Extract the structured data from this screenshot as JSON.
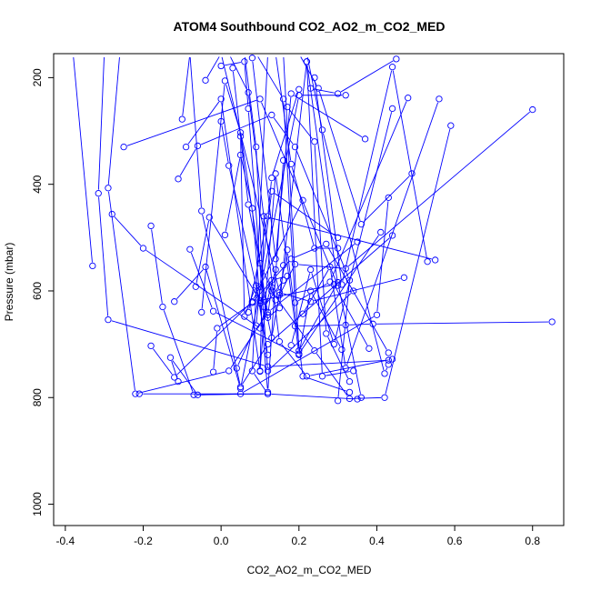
{
  "chart_data": {
    "type": "line",
    "title": "ATOM4 Southbound CO2_AO2_m_CO2_MED",
    "xlabel": "CO2_AO2_m_CO2_MED",
    "ylabel": "Pressure (mbar)",
    "xlim": [
      -0.43,
      0.88
    ],
    "ylim": [
      1040,
      155
    ],
    "y_reversed": true,
    "x_ticks": [
      -0.4,
      -0.2,
      0.0,
      0.2,
      0.4,
      0.6,
      0.8
    ],
    "x_tick_labels": [
      "-0.4",
      "-0.2",
      "0.0",
      "0.2",
      "0.4",
      "0.6",
      "0.8"
    ],
    "y_ticks": [
      200,
      400,
      600,
      800,
      1000
    ],
    "y_tick_labels": [
      "200",
      "400",
      "600",
      "800",
      "1000"
    ],
    "series_color": "#0000ff",
    "grid": false,
    "legend": "none",
    "series": [
      {
        "x": [
          -0.38,
          -0.33
        ],
        "y": [
          155,
          553
        ]
      },
      {
        "x": [
          -0.3,
          -0.315,
          -0.29,
          0.12,
          0.43
        ],
        "y": [
          155,
          417,
          654,
          742,
          730
        ]
      },
      {
        "x": [
          -0.26,
          -0.29,
          -0.22,
          0.02,
          0.12,
          0.35
        ],
        "y": [
          155,
          407,
          793,
          750,
          640,
          508
        ]
      },
      {
        "x": [
          -0.25,
          0.1,
          0.3,
          0.22
        ],
        "y": [
          330,
          240,
          590,
          170
        ]
      },
      {
        "x": [
          -0.28,
          -0.2,
          0.1,
          0.14
        ],
        "y": [
          456,
          520,
          670,
          560
        ]
      },
      {
        "x": [
          -0.18,
          -0.12,
          0.08,
          0.21
        ],
        "y": [
          703,
          762,
          620,
          430
        ]
      },
      {
        "x": [
          -0.21,
          0.12,
          0.35
        ],
        "y": [
          793,
          793,
          803
        ]
      },
      {
        "x": [
          -0.18,
          -0.15,
          -0.07,
          0.12,
          0.08,
          0.12
        ],
        "y": [
          478,
          630,
          795,
          793,
          750,
          155
        ]
      },
      {
        "x": [
          -0.11,
          -0.13,
          -0.06,
          0.05,
          0.4,
          0.43
        ],
        "y": [
          770,
          725,
          795,
          793,
          645,
          425
        ]
      },
      {
        "x": [
          -0.12,
          -0.04,
          0.05,
          0.2,
          0.32
        ],
        "y": [
          620,
          555,
          783,
          233,
          233
        ]
      },
      {
        "x": [
          -0.11,
          -0.06,
          0.13,
          0.19,
          0.33,
          0.3
        ],
        "y": [
          390,
          328,
          270,
          330,
          580,
          806
        ]
      },
      {
        "x": [
          -0.1,
          -0.08,
          -0.05,
          0.05,
          0.12,
          0.44
        ],
        "y": [
          278,
          155,
          450,
          780,
          700,
          496
        ]
      },
      {
        "x": [
          -0.09,
          0.0,
          0.1,
          0.11,
          0.55
        ],
        "y": [
          330,
          240,
          751,
          460,
          542
        ]
      },
      {
        "x": [
          -0.08,
          -0.02,
          0.2,
          0.23,
          0.31
        ],
        "y": [
          522,
          638,
          720,
          600,
          710
        ]
      },
      {
        "x": [
          -0.065,
          -0.03,
          0.1,
          0.29,
          0.38
        ],
        "y": [
          592,
          462,
          618,
          588,
          708
        ]
      },
      {
        "x": [
          -0.05,
          0.01,
          0.05,
          0.12,
          0.13
        ],
        "y": [
          640,
          206,
          303,
          645,
          593
        ]
      },
      {
        "x": [
          -0.04,
          0.0,
          0.15,
          0.23,
          0.47
        ],
        "y": [
          205,
          155,
          603,
          620,
          575
        ]
      },
      {
        "x": [
          -0.02,
          -0.01,
          0.08,
          0.18,
          0.27,
          0.43
        ],
        "y": [
          752,
          670,
          622,
          540,
          512,
          716
        ]
      },
      {
        "x": [
          0.0,
          0.06,
          0.07,
          0.12,
          0.34
        ],
        "y": [
          178,
          170,
          258,
          750,
          600
        ]
      },
      {
        "x": [
          0.0,
          0.02,
          0.1,
          0.13,
          0.17
        ],
        "y": [
          282,
          365,
          623,
          580,
          572
        ]
      },
      {
        "x": [
          0.01,
          0.05,
          0.08,
          0.12,
          0.16
        ],
        "y": [
          495,
          345,
          445,
          790,
          355
        ]
      },
      {
        "x": [
          0.02,
          0.07,
          0.15,
          0.22,
          0.44
        ],
        "y": [
          155,
          228,
          695,
          760,
          728
        ]
      },
      {
        "x": [
          0.03,
          0.07,
          0.1,
          0.14
        ],
        "y": [
          182,
          438,
          548,
          617
        ]
      },
      {
        "x": [
          0.04,
          0.09,
          0.1,
          0.13,
          0.3
        ],
        "y": [
          745,
          665,
          592,
          413,
          500
        ]
      },
      {
        "x": [
          0.05,
          0.06,
          0.09,
          0.12
        ],
        "y": [
          310,
          648,
          590,
          720
        ]
      },
      {
        "x": [
          0.06,
          0.09,
          0.11,
          0.16
        ],
        "y": [
          155,
          330,
          630,
          580
        ]
      },
      {
        "x": [
          0.07,
          0.12,
          0.13,
          0.2
        ],
        "y": [
          640,
          460,
          388,
          222
        ]
      },
      {
        "x": [
          0.08,
          0.14,
          0.18,
          0.37
        ],
        "y": [
          163,
          540,
          230,
          315
        ]
      },
      {
        "x": [
          0.09,
          0.16,
          0.19,
          0.28,
          0.48
        ],
        "y": [
          155,
          240,
          622,
          583,
          238
        ]
      },
      {
        "x": [
          0.1,
          0.14,
          0.2,
          0.41
        ],
        "y": [
          750,
          380,
          718,
          490
        ]
      },
      {
        "x": [
          0.11,
          0.13,
          0.17,
          0.21,
          0.33
        ],
        "y": [
          617,
          688,
          523,
          760,
          790
        ]
      },
      {
        "x": [
          0.12,
          0.15,
          0.16,
          0.22,
          0.26,
          0.34
        ],
        "y": [
          650,
          632,
          552,
          170,
          760,
          750
        ]
      },
      {
        "x": [
          0.13,
          0.24,
          0.33,
          0.42,
          0.59
        ],
        "y": [
          600,
          712,
          802,
          800,
          290
        ]
      },
      {
        "x": [
          0.14,
          0.18,
          0.24,
          0.3
        ],
        "y": [
          155,
          362,
          520,
          520
        ]
      },
      {
        "x": [
          0.15,
          0.19,
          0.32,
          0.8
        ],
        "y": [
          608,
          550,
          558,
          260
        ]
      },
      {
        "x": [
          0.16,
          0.2,
          0.3,
          0.36
        ],
        "y": [
          155,
          712,
          584,
          800
        ]
      },
      {
        "x": [
          0.17,
          0.24,
          0.27,
          0.33
        ],
        "y": [
          255,
          320,
          680,
          770
        ]
      },
      {
        "x": [
          0.18,
          0.23,
          0.29,
          0.44
        ],
        "y": [
          702,
          560,
          700,
          258
        ]
      },
      {
        "x": [
          0.19,
          0.32,
          0.39,
          0.85
        ],
        "y": [
          666,
          664,
          662,
          658
        ]
      },
      {
        "x": [
          0.2,
          0.25,
          0.36,
          0.49
        ],
        "y": [
          155,
          220,
          475,
          380
        ]
      },
      {
        "x": [
          0.21,
          0.28,
          0.32,
          0.56
        ],
        "y": [
          643,
          555,
          745,
          240
        ]
      },
      {
        "x": [
          0.22,
          0.26,
          0.42,
          0.43
        ],
        "y": [
          155,
          298,
          755,
          738
        ]
      },
      {
        "x": [
          0.23,
          0.3,
          0.45
        ],
        "y": [
          220,
          230,
          165
        ]
      },
      {
        "x": [
          0.24,
          0.31,
          0.44,
          0.53
        ],
        "y": [
          200,
          588,
          180,
          545
        ]
      }
    ]
  }
}
